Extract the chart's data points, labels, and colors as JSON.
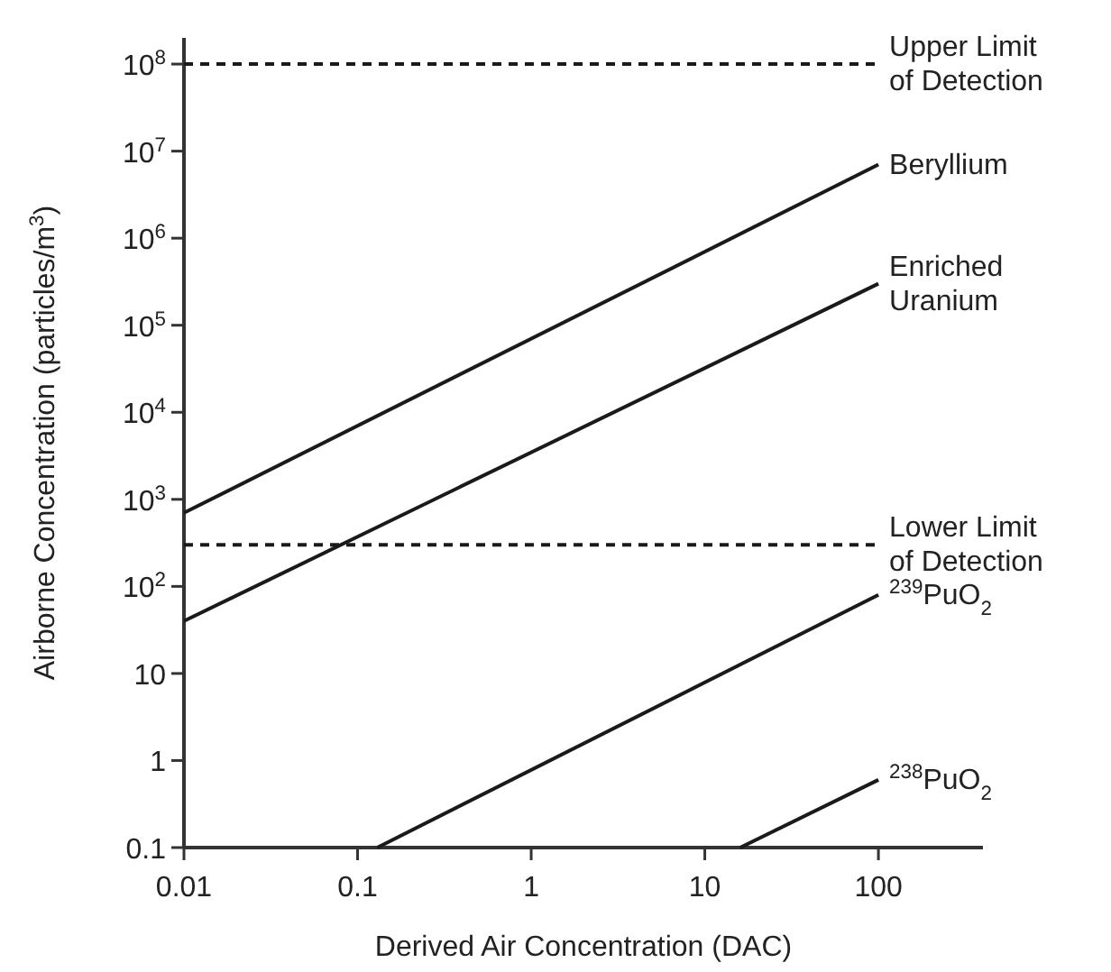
{
  "chart_data": {
    "type": "line",
    "xlabel": "Derived Air Concentration (DAC)",
    "ylabel": "Airborne Concentration (particles/m$^{3}$)",
    "log": "xy",
    "xlim": [
      0.01,
      400
    ],
    "ylim": [
      0.1,
      200000000
    ],
    "xticks": [
      0.01,
      0.1,
      1,
      10,
      100
    ],
    "yticks": [
      0.1,
      1,
      10,
      {
        "value": 100,
        "label": "10$^{2}$"
      },
      {
        "value": 1000,
        "label": "10$^{3}$"
      },
      {
        "value": 10000,
        "label": "10$^{4}$"
      },
      {
        "value": 100000,
        "label": "10$^{5}$"
      },
      {
        "value": 1000000,
        "label": "10$^{6}$"
      },
      {
        "value": 10000000,
        "label": "10$^{7}$"
      },
      {
        "value": 100000000,
        "label": "10$^{8}$"
      }
    ],
    "grid": false,
    "legend": false,
    "marker": "none",
    "series": [
      {
        "name": "Upper Limit of Detection",
        "color": "#1a1a1a",
        "line_style": "dashed",
        "x": [
          0.01,
          100
        ],
        "values": [
          100000000,
          100000000
        ]
      },
      {
        "name": "Beryllium",
        "color": "#1a1a1a",
        "line_style": "solid",
        "x": [
          0.01,
          100
        ],
        "values": [
          700,
          7000000
        ]
      },
      {
        "name": "Enriched Uranium",
        "color": "#1a1a1a",
        "line_style": "solid",
        "x": [
          0.01,
          100
        ],
        "values": [
          40,
          300000
        ]
      },
      {
        "name": "Lower Limit of Detection",
        "color": "#1a1a1a",
        "line_style": "dashed",
        "x": [
          0.01,
          100
        ],
        "values": [
          300,
          300
        ]
      },
      {
        "name": "$^{239}$PuO$_{2}$",
        "color": "#1a1a1a",
        "line_style": "solid",
        "x": [
          0.13,
          100
        ],
        "values": [
          0.1,
          80
        ]
      },
      {
        "name": "$^{238}$PuO$_{2}$",
        "color": "#1a1a1a",
        "line_style": "solid",
        "x": [
          16,
          100
        ],
        "values": [
          0.1,
          0.6
        ]
      }
    ]
  }
}
